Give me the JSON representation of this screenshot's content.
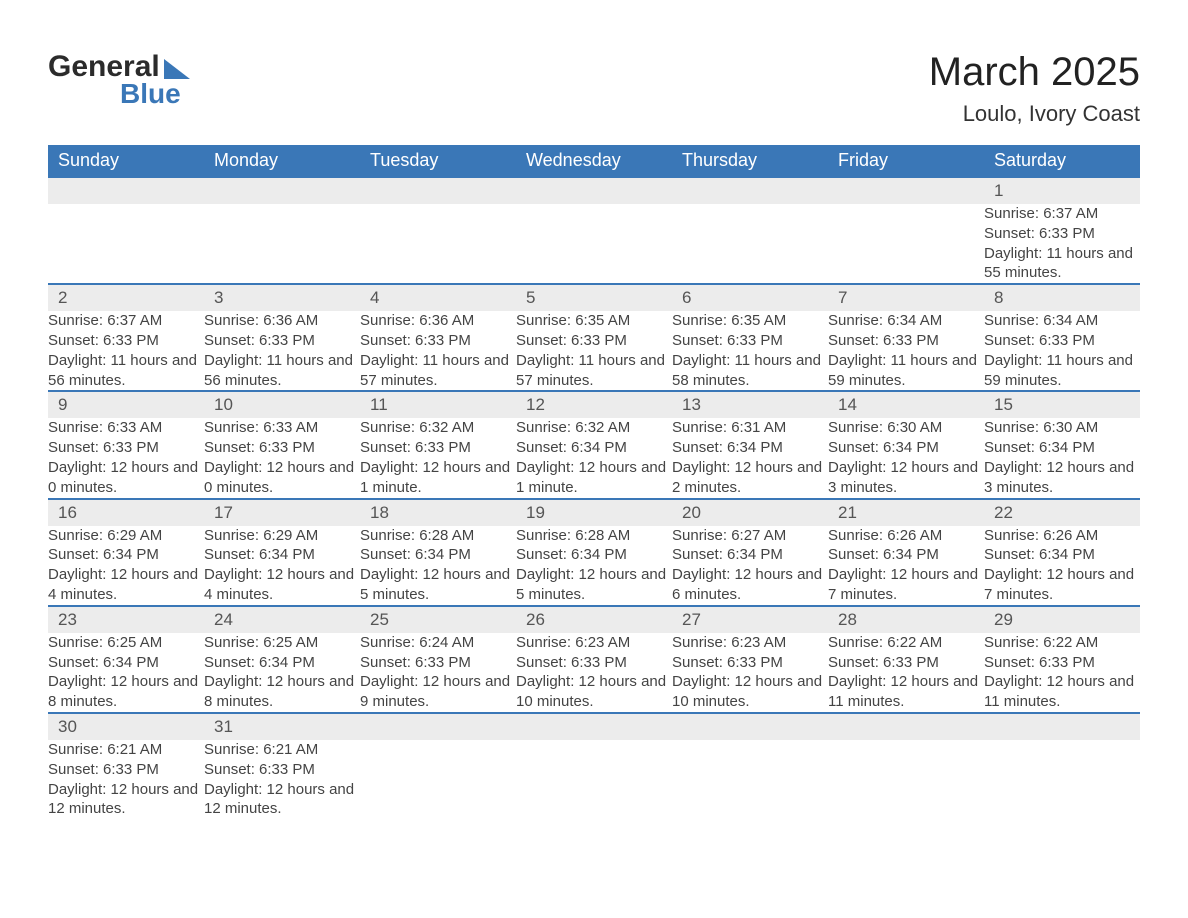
{
  "brand": {
    "name1": "General",
    "name2": "Blue",
    "accent": "#3a77b7"
  },
  "title": "March 2025",
  "location": "Loulo, Ivory Coast",
  "colors": {
    "header_bg": "#3a77b7",
    "header_text": "#ffffff",
    "daynum_bg": "#ececec",
    "row_divider": "#3a77b7",
    "body_text": "#444444",
    "page_bg": "#ffffff"
  },
  "dayNames": [
    "Sunday",
    "Monday",
    "Tuesday",
    "Wednesday",
    "Thursday",
    "Friday",
    "Saturday"
  ],
  "weeks": [
    [
      null,
      null,
      null,
      null,
      null,
      null,
      {
        "n": "1",
        "sr": "Sunrise: 6:37 AM",
        "ss": "Sunset: 6:33 PM",
        "dl": "Daylight: 11 hours and 55 minutes."
      }
    ],
    [
      {
        "n": "2",
        "sr": "Sunrise: 6:37 AM",
        "ss": "Sunset: 6:33 PM",
        "dl": "Daylight: 11 hours and 56 minutes."
      },
      {
        "n": "3",
        "sr": "Sunrise: 6:36 AM",
        "ss": "Sunset: 6:33 PM",
        "dl": "Daylight: 11 hours and 56 minutes."
      },
      {
        "n": "4",
        "sr": "Sunrise: 6:36 AM",
        "ss": "Sunset: 6:33 PM",
        "dl": "Daylight: 11 hours and 57 minutes."
      },
      {
        "n": "5",
        "sr": "Sunrise: 6:35 AM",
        "ss": "Sunset: 6:33 PM",
        "dl": "Daylight: 11 hours and 57 minutes."
      },
      {
        "n": "6",
        "sr": "Sunrise: 6:35 AM",
        "ss": "Sunset: 6:33 PM",
        "dl": "Daylight: 11 hours and 58 minutes."
      },
      {
        "n": "7",
        "sr": "Sunrise: 6:34 AM",
        "ss": "Sunset: 6:33 PM",
        "dl": "Daylight: 11 hours and 59 minutes."
      },
      {
        "n": "8",
        "sr": "Sunrise: 6:34 AM",
        "ss": "Sunset: 6:33 PM",
        "dl": "Daylight: 11 hours and 59 minutes."
      }
    ],
    [
      {
        "n": "9",
        "sr": "Sunrise: 6:33 AM",
        "ss": "Sunset: 6:33 PM",
        "dl": "Daylight: 12 hours and 0 minutes."
      },
      {
        "n": "10",
        "sr": "Sunrise: 6:33 AM",
        "ss": "Sunset: 6:33 PM",
        "dl": "Daylight: 12 hours and 0 minutes."
      },
      {
        "n": "11",
        "sr": "Sunrise: 6:32 AM",
        "ss": "Sunset: 6:33 PM",
        "dl": "Daylight: 12 hours and 1 minute."
      },
      {
        "n": "12",
        "sr": "Sunrise: 6:32 AM",
        "ss": "Sunset: 6:34 PM",
        "dl": "Daylight: 12 hours and 1 minute."
      },
      {
        "n": "13",
        "sr": "Sunrise: 6:31 AM",
        "ss": "Sunset: 6:34 PM",
        "dl": "Daylight: 12 hours and 2 minutes."
      },
      {
        "n": "14",
        "sr": "Sunrise: 6:30 AM",
        "ss": "Sunset: 6:34 PM",
        "dl": "Daylight: 12 hours and 3 minutes."
      },
      {
        "n": "15",
        "sr": "Sunrise: 6:30 AM",
        "ss": "Sunset: 6:34 PM",
        "dl": "Daylight: 12 hours and 3 minutes."
      }
    ],
    [
      {
        "n": "16",
        "sr": "Sunrise: 6:29 AM",
        "ss": "Sunset: 6:34 PM",
        "dl": "Daylight: 12 hours and 4 minutes."
      },
      {
        "n": "17",
        "sr": "Sunrise: 6:29 AM",
        "ss": "Sunset: 6:34 PM",
        "dl": "Daylight: 12 hours and 4 minutes."
      },
      {
        "n": "18",
        "sr": "Sunrise: 6:28 AM",
        "ss": "Sunset: 6:34 PM",
        "dl": "Daylight: 12 hours and 5 minutes."
      },
      {
        "n": "19",
        "sr": "Sunrise: 6:28 AM",
        "ss": "Sunset: 6:34 PM",
        "dl": "Daylight: 12 hours and 5 minutes."
      },
      {
        "n": "20",
        "sr": "Sunrise: 6:27 AM",
        "ss": "Sunset: 6:34 PM",
        "dl": "Daylight: 12 hours and 6 minutes."
      },
      {
        "n": "21",
        "sr": "Sunrise: 6:26 AM",
        "ss": "Sunset: 6:34 PM",
        "dl": "Daylight: 12 hours and 7 minutes."
      },
      {
        "n": "22",
        "sr": "Sunrise: 6:26 AM",
        "ss": "Sunset: 6:34 PM",
        "dl": "Daylight: 12 hours and 7 minutes."
      }
    ],
    [
      {
        "n": "23",
        "sr": "Sunrise: 6:25 AM",
        "ss": "Sunset: 6:34 PM",
        "dl": "Daylight: 12 hours and 8 minutes."
      },
      {
        "n": "24",
        "sr": "Sunrise: 6:25 AM",
        "ss": "Sunset: 6:34 PM",
        "dl": "Daylight: 12 hours and 8 minutes."
      },
      {
        "n": "25",
        "sr": "Sunrise: 6:24 AM",
        "ss": "Sunset: 6:33 PM",
        "dl": "Daylight: 12 hours and 9 minutes."
      },
      {
        "n": "26",
        "sr": "Sunrise: 6:23 AM",
        "ss": "Sunset: 6:33 PM",
        "dl": "Daylight: 12 hours and 10 minutes."
      },
      {
        "n": "27",
        "sr": "Sunrise: 6:23 AM",
        "ss": "Sunset: 6:33 PM",
        "dl": "Daylight: 12 hours and 10 minutes."
      },
      {
        "n": "28",
        "sr": "Sunrise: 6:22 AM",
        "ss": "Sunset: 6:33 PM",
        "dl": "Daylight: 12 hours and 11 minutes."
      },
      {
        "n": "29",
        "sr": "Sunrise: 6:22 AM",
        "ss": "Sunset: 6:33 PM",
        "dl": "Daylight: 12 hours and 11 minutes."
      }
    ],
    [
      {
        "n": "30",
        "sr": "Sunrise: 6:21 AM",
        "ss": "Sunset: 6:33 PM",
        "dl": "Daylight: 12 hours and 12 minutes."
      },
      {
        "n": "31",
        "sr": "Sunrise: 6:21 AM",
        "ss": "Sunset: 6:33 PM",
        "dl": "Daylight: 12 hours and 12 minutes."
      },
      null,
      null,
      null,
      null,
      null
    ]
  ]
}
